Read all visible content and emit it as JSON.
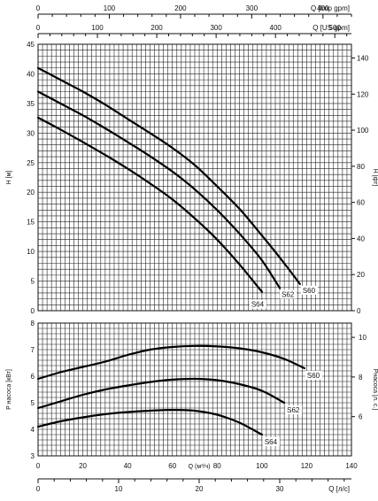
{
  "chart_data": [
    {
      "type": "line",
      "panel": "head",
      "ylabel_left": "H [м]",
      "ylabel_right": "H [фт]",
      "x_axes_top": [
        {
          "label": "Q [Imp gpm]",
          "range": [
            0,
            440
          ],
          "ticks": [
            "0",
            "100",
            "200",
            "300",
            "400"
          ]
        },
        {
          "label": "Q [US gpm]",
          "range": [
            0,
            528
          ],
          "ticks": [
            "0",
            "100",
            "200",
            "300",
            "400",
            "500"
          ]
        }
      ],
      "ylim_left": [
        0,
        45
      ],
      "yticks_left": [
        "0",
        "5",
        "10",
        "15",
        "20",
        "25",
        "30",
        "35",
        "40",
        "45"
      ],
      "ylim_right": [
        0,
        147.6
      ],
      "yticks_right": [
        "0",
        "20",
        "40",
        "60",
        "80",
        "100",
        "120",
        "140"
      ],
      "grid": true,
      "x_unit": "Q [м³/ч]",
      "series": [
        {
          "name": "S60",
          "x": [
            0,
            10,
            20,
            30,
            40,
            50,
            60,
            70,
            80,
            90,
            100,
            110,
            117
          ],
          "y": [
            41.0,
            39.0,
            37.0,
            34.8,
            32.4,
            30.0,
            27.5,
            24.6,
            21.0,
            17.2,
            12.7,
            8.0,
            4.5
          ]
        },
        {
          "name": "S62",
          "x": [
            0,
            10,
            20,
            30,
            40,
            50,
            60,
            70,
            80,
            90,
            100,
            108
          ],
          "y": [
            37.0,
            35.0,
            33.0,
            30.8,
            28.5,
            26.1,
            23.5,
            20.5,
            17.0,
            13.0,
            8.5,
            3.8
          ]
        },
        {
          "name": "S64",
          "x": [
            0,
            10,
            20,
            30,
            40,
            50,
            60,
            70,
            80,
            90,
            100
          ],
          "y": [
            32.6,
            30.6,
            28.5,
            26.3,
            24.0,
            21.5,
            18.8,
            15.6,
            12.0,
            7.8,
            3.2
          ]
        }
      ]
    },
    {
      "type": "line",
      "panel": "power",
      "ylabel_left": "P насоса [кВт]",
      "ylabel_right": "Pнасоса [л. с.]",
      "xlabel": "Q (м³/ч)",
      "xlim": [
        0,
        140
      ],
      "xticks": [
        "0",
        "20",
        "40",
        "60",
        "80",
        "100",
        "120",
        "140"
      ],
      "x2_label": "Q [л/с]",
      "x2_range": [
        0,
        38.9
      ],
      "x2_ticks": [
        "0",
        "10",
        "20",
        "30"
      ],
      "ylim_left": [
        3,
        8
      ],
      "yticks_left": [
        "3",
        "4",
        "5",
        "6",
        "7",
        "8"
      ],
      "ylim_right": [
        4.02,
        10.72
      ],
      "yticks_right": [
        "6",
        "8",
        "10"
      ],
      "grid": true,
      "series": [
        {
          "name": "S60",
          "x": [
            0,
            10,
            20,
            30,
            40,
            50,
            60,
            70,
            80,
            90,
            100,
            110,
            119
          ],
          "y": [
            5.9,
            6.15,
            6.35,
            6.55,
            6.8,
            7.0,
            7.1,
            7.14,
            7.12,
            7.05,
            6.9,
            6.65,
            6.3
          ]
        },
        {
          "name": "S62",
          "x": [
            0,
            10,
            20,
            30,
            40,
            50,
            60,
            70,
            80,
            90,
            100,
            110
          ],
          "y": [
            4.8,
            5.05,
            5.3,
            5.5,
            5.65,
            5.78,
            5.87,
            5.9,
            5.85,
            5.7,
            5.45,
            5.0
          ]
        },
        {
          "name": "S64",
          "x": [
            0,
            10,
            20,
            30,
            40,
            50,
            60,
            70,
            80,
            90,
            100
          ],
          "y": [
            4.1,
            4.3,
            4.45,
            4.57,
            4.65,
            4.7,
            4.73,
            4.7,
            4.55,
            4.25,
            3.8
          ]
        }
      ]
    }
  ]
}
